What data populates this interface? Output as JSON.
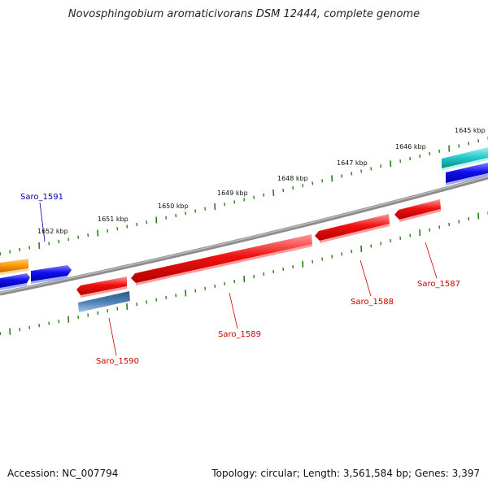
{
  "title": "Novosphingobium aromaticivorans DSM 12444, complete genome",
  "accession_label": "Accession:",
  "accession": "NC_007794",
  "topology_text": "Topology: circular; Length: 3,561,584 bp; Genes: 3,397",
  "scale_labels": [
    "1645 kbp",
    "1646 kbp",
    "1647 kbp",
    "1648 kbp",
    "1649 kbp",
    "1650 kbp",
    "1651 kbp",
    "1652 kbp"
  ],
  "gene_labels": [
    {
      "name": "Saro_1591",
      "color": "#0000aa"
    },
    {
      "name": "Saro_1590",
      "color": "#cc0000"
    },
    {
      "name": "Saro_1589",
      "color": "#cc0000"
    },
    {
      "name": "Saro_1588",
      "color": "#cc0000"
    },
    {
      "name": "Saro_1587",
      "color": "#cc0000"
    }
  ],
  "colors": {
    "backbone": "#8c8c8c",
    "tick": "#2e7d1a",
    "forward_gene": "#1010ee",
    "reverse_gene": "#ee1111",
    "orange_gene": "#ff9900",
    "cyan_gene": "#22c8c8",
    "steelblue_gene": "#4a7fb5"
  }
}
